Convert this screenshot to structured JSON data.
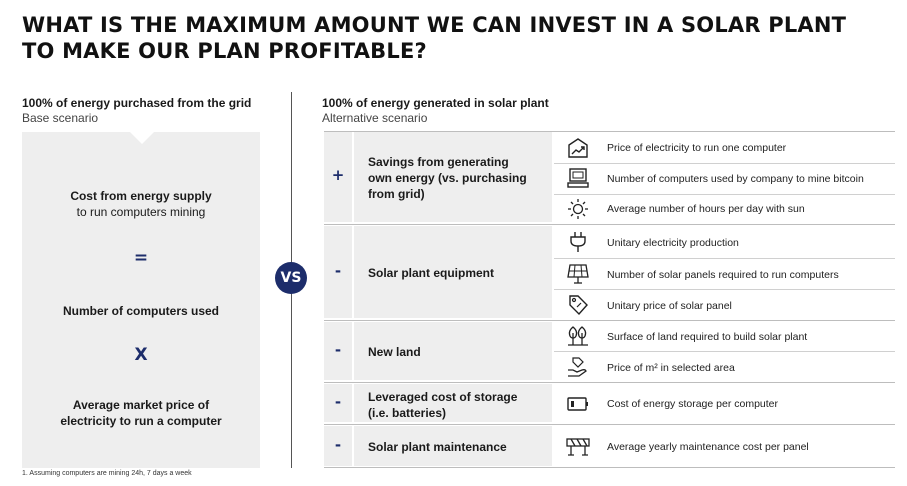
{
  "title": "WHAT IS THE MAXIMUM AMOUNT WE CAN INVEST IN A SOLAR PLANT TO MAKE OUR PLAN PROFITABLE?",
  "left": {
    "heading": "100% of energy purchased from the grid",
    "subheading": "Base scenario",
    "line1_bold": "Cost from energy supply",
    "line1_normal": "to run computers mining",
    "op1": "=",
    "line2": "Number of computers used",
    "op2": "X",
    "line3a": "Average market price of",
    "line3b": "electricity to run a computer"
  },
  "vs_label": "VS",
  "right": {
    "heading": "100% of energy generated in solar plant",
    "subheading": "Alternative scenario",
    "sections": [
      {
        "sign": "+",
        "label_lines": [
          "Savings from generating",
          "own energy (vs. purchasing",
          "from grid)"
        ],
        "items": [
          {
            "icon": "price-chart-icon",
            "text": "Price of electricity to run one computer"
          },
          {
            "icon": "computer-icon",
            "text": "Number of computers used by company to mine bitcoin"
          },
          {
            "icon": "sun-icon",
            "text": "Average number of hours per day with sun"
          }
        ]
      },
      {
        "sign": "-",
        "label_lines": [
          "Solar plant equipment"
        ],
        "items": [
          {
            "icon": "plug-icon",
            "text": "Unitary electricity production"
          },
          {
            "icon": "solar-panel-icon",
            "text": "Number of solar panels required to run computers"
          },
          {
            "icon": "price-tag-icon",
            "text": "Unitary price of solar panel"
          }
        ]
      },
      {
        "sign": "-",
        "label_lines": [
          "New land"
        ],
        "items": [
          {
            "icon": "trees-icon",
            "text": "Surface of land required to build solar plant"
          },
          {
            "icon": "land-price-icon",
            "text": "Price of m² in selected area"
          }
        ]
      },
      {
        "sign": "-",
        "label_lines": [
          "Leveraged cost of storage",
          "(i.e. batteries)"
        ],
        "items": [
          {
            "icon": "battery-icon",
            "text": "Cost of energy storage per computer"
          }
        ]
      },
      {
        "sign": "-",
        "label_lines": [
          "Solar plant maintenance"
        ],
        "items": [
          {
            "icon": "barrier-icon",
            "text": "Average yearly maintenance cost per panel"
          }
        ]
      }
    ]
  },
  "footnote": "1. Assuming computers are mining 24h, 7 days a week",
  "colors": {
    "accent": "#1d2d6b",
    "panel": "#eeeeee"
  }
}
